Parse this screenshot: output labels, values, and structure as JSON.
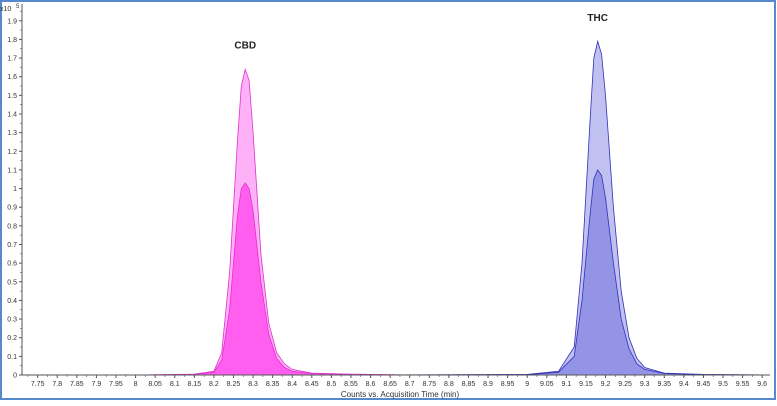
{
  "chart_data": {
    "type": "area",
    "title": "",
    "xlabel": "Counts vs. Acquisition Time (min)",
    "ylabel": "",
    "y_multiplier_label": "x10",
    "y_multiplier_exp": "5",
    "xlim": [
      7.71,
      9.62
    ],
    "ylim": [
      0,
      1.99
    ],
    "x_ticks": [
      "7.75",
      "7.8",
      "7.85",
      "7.9",
      "7.95",
      "8",
      "8.05",
      "8.1",
      "8.15",
      "8.2",
      "8.25",
      "8.3",
      "8.35",
      "8.4",
      "8.45",
      "8.5",
      "8.55",
      "8.6",
      "8.65",
      "8.7",
      "8.75",
      "8.8",
      "8.85",
      "8.9",
      "8.95",
      "9",
      "9.05",
      "9.1",
      "9.15",
      "9.2",
      "9.25",
      "9.3",
      "9.35",
      "9.4",
      "9.45",
      "9.5",
      "9.55",
      "9.6"
    ],
    "y_ticks": [
      "0",
      "0.1",
      "0.2",
      "0.3",
      "0.4",
      "0.5",
      "0.6",
      "0.7",
      "0.8",
      "0.9",
      "1",
      "1.1",
      "1.2",
      "1.3",
      "1.4",
      "1.5",
      "1.6",
      "1.7",
      "1.8",
      "1.9"
    ],
    "grid": false,
    "series": [
      {
        "x": [
          7.71,
          8.0,
          8.15,
          8.2,
          8.22,
          8.24,
          8.26,
          8.27,
          8.28,
          8.29,
          8.3,
          8.32,
          8.34,
          8.36,
          8.38,
          8.4,
          8.45,
          8.55,
          8.7
        ],
        "y": [
          0.0,
          0.0,
          0.005,
          0.02,
          0.12,
          0.55,
          1.25,
          1.55,
          1.64,
          1.58,
          1.3,
          0.65,
          0.28,
          0.12,
          0.06,
          0.03,
          0.01,
          0.005,
          0.0
        ]
      },
      {
        "x": [
          7.71,
          8.0,
          8.15,
          8.2,
          8.22,
          8.24,
          8.26,
          8.27,
          8.28,
          8.29,
          8.3,
          8.32,
          8.34,
          8.36,
          8.38,
          8.4,
          8.45,
          8.55,
          8.7
        ],
        "y": [
          0.0,
          0.0,
          0.003,
          0.015,
          0.08,
          0.35,
          0.85,
          1.0,
          1.03,
          1.0,
          0.88,
          0.5,
          0.22,
          0.09,
          0.04,
          0.02,
          0.008,
          0.003,
          0.0
        ]
      },
      {
        "x": [
          8.6,
          9.0,
          9.08,
          9.12,
          9.14,
          9.16,
          9.17,
          9.18,
          9.19,
          9.2,
          9.22,
          9.24,
          9.26,
          9.28,
          9.3,
          9.35,
          9.45,
          9.62
        ],
        "y": [
          0.0,
          0.003,
          0.02,
          0.15,
          0.6,
          1.35,
          1.7,
          1.79,
          1.72,
          1.5,
          0.9,
          0.45,
          0.2,
          0.09,
          0.04,
          0.01,
          0.003,
          0.0
        ]
      },
      {
        "x": [
          8.6,
          9.0,
          9.08,
          9.12,
          9.14,
          9.16,
          9.17,
          9.18,
          9.19,
          9.2,
          9.22,
          9.24,
          9.26,
          9.28,
          9.3,
          9.35,
          9.45,
          9.62
        ],
        "y": [
          0.0,
          0.002,
          0.015,
          0.1,
          0.4,
          0.85,
          1.05,
          1.1,
          1.07,
          0.95,
          0.6,
          0.3,
          0.14,
          0.06,
          0.03,
          0.008,
          0.002,
          0.0
        ]
      }
    ],
    "annotations": [
      {
        "text": "CBD",
        "x": 8.28,
        "y": 1.75
      },
      {
        "text": "THC",
        "x": 9.18,
        "y": 1.9
      }
    ],
    "colors": {
      "pink_light": "#FFA8F6",
      "pink_dark": "#FF55EC",
      "pink_line": "#E030D0",
      "blue_light": "#B9B9F0",
      "blue_dark": "#8F8FE6",
      "blue_line": "#3030B8",
      "frame": "#5588CC",
      "axis": "#555555"
    }
  }
}
